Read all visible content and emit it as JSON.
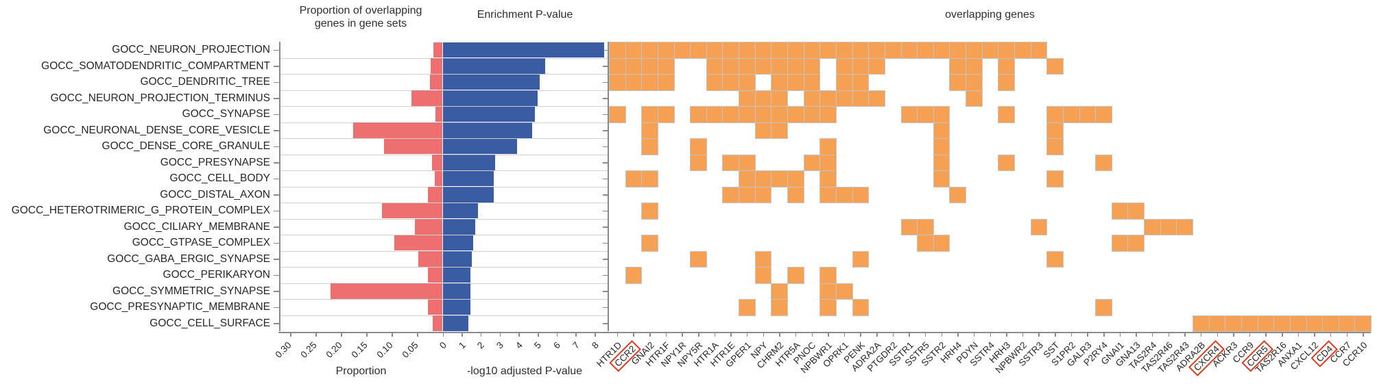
{
  "header": {
    "left_title": "Proportion of overlapping\ngenes in gene sets",
    "middle_title": "Enrichment P-value",
    "right_title": "overlapping genes"
  },
  "axes": {
    "proportion_caption": "Proportion",
    "pvalue_caption": "-log10 adjusted P-value",
    "proportion_ticks": [
      "0.30",
      "0.25",
      "0.20",
      "0.15",
      "0.10",
      "0.05"
    ],
    "pvalue_ticks": [
      "0",
      "1",
      "2",
      "3",
      "4",
      "5",
      "6",
      "7",
      "8"
    ]
  },
  "colors": {
    "proportion_bar": "#EE6F6F",
    "pvalue_bar": "#3A5CA3",
    "heatmap_cell": "#F5A052",
    "highlight_box": "#E5391F",
    "axis_line": "#8a8a8a"
  },
  "chart_data": {
    "type": [
      "bar",
      "bar",
      "heatmap"
    ],
    "categories": [
      "GOCC_NEURON_PROJECTION",
      "GOCC_SOMATODENDRITIC_COMPARTMENT",
      "GOCC_DENDRITIC_TREE",
      "GOCC_NEURON_PROJECTION_TERMINUS",
      "GOCC_SYNAPSE",
      "GOCC_NEURONAL_DENSE_CORE_VESICLE",
      "GOCC_DENSE_CORE_GRANULE",
      "GOCC_PRESYNAPSE",
      "GOCC_CELL_BODY",
      "GOCC_DISTAL_AXON",
      "GOCC_HETEROTRIMERIC_G_PROTEIN_COMPLEX",
      "GOCC_CILIARY_MEMBRANE",
      "GOCC_GTPASE_COMPLEX",
      "GOCC_GABA_ERGIC_SYNAPSE",
      "GOCC_PERIKARYON",
      "GOCC_SYMMETRIC_SYNAPSE",
      "GOCC_PRESYNAPTIC_MEMBRANE",
      "GOCC_CELL_SURFACE"
    ],
    "proportion": {
      "title": "Proportion of overlapping genes in gene sets",
      "xlabel": "Proportion",
      "xlim": [
        0.32,
        0
      ],
      "axis_reversed": true,
      "values": [
        0.018,
        0.023,
        0.025,
        0.061,
        0.014,
        0.176,
        0.115,
        0.02,
        0.015,
        0.028,
        0.119,
        0.054,
        0.095,
        0.047,
        0.028,
        0.22,
        0.029,
        0.019
      ]
    },
    "enrichment": {
      "title": "Enrichment P-value",
      "xlabel": "-log10 adjusted P-value",
      "xlim": [
        0,
        8.7
      ],
      "values": [
        8.5,
        5.4,
        5.1,
        5.0,
        4.85,
        4.7,
        3.9,
        2.75,
        2.7,
        2.7,
        1.85,
        1.7,
        1.6,
        1.55,
        1.45,
        1.45,
        1.45,
        1.35
      ]
    },
    "heatmap": {
      "title": "overlapping genes",
      "genes": [
        "HTR1D",
        "CCR2",
        "GNAI2",
        "HTR1F",
        "NPY1R",
        "NPY5R",
        "HTR1A",
        "HTR1E",
        "GPER1",
        "NPY",
        "CHRM2",
        "HTR5A",
        "PNOC",
        "NPBWR1",
        "OPRK1",
        "PENK",
        "ADRA2A",
        "PTGDR2",
        "SSTR1",
        "SSTR5",
        "SSTR2",
        "HRH4",
        "PDYN",
        "SSTR4",
        "HRH3",
        "NPBWR2",
        "SSTR3",
        "SST",
        "S1PR2",
        "GALR3",
        "P2RY4",
        "GNAI1",
        "GNA13",
        "TAS2R4",
        "TAS2R46",
        "TAS2R43",
        "ADRA2B",
        "CXCR4",
        "ACKR3",
        "CCR9",
        "CCR5",
        "TAS2R16",
        "ANXA1",
        "CXCL12",
        "CD4",
        "CCR7",
        "CCR10"
      ],
      "highlighted_genes": [
        "CCR2",
        "CXCR4",
        "CCR5",
        "CD4"
      ],
      "matrix": [
        "11111111111111111111111111100000000000000000000",
        "11110011111110111000011010010000000000000000000",
        "11110011101110110000011010000000000000000000000",
        "00000000111011111000001000000000000000000000000",
        "10110111111111000011100010011110000000000000000",
        "00100000011000000000100000010000000000000000000",
        "00100100000001000000100000010000000000000000000",
        "00000101100011000000100010000010000000000000000",
        "01100000111101000000100000010000000000000000000",
        "00000001110101110000010000000000000000000000000",
        "00100000000000000000000000000001100000000000000",
        "00000000000000000011000000100000011100000000000",
        "00100000000000000001100000000001100000000000000",
        "00000100010000010000000000010000000000000000000",
        "01000000010101000000000000000000000000000000000",
        "00000000001001100000000000000000000000000000000",
        "00000000101001010000000000000010000000000000000",
        "00000000000000000000000000000000000011111111111"
      ]
    }
  }
}
